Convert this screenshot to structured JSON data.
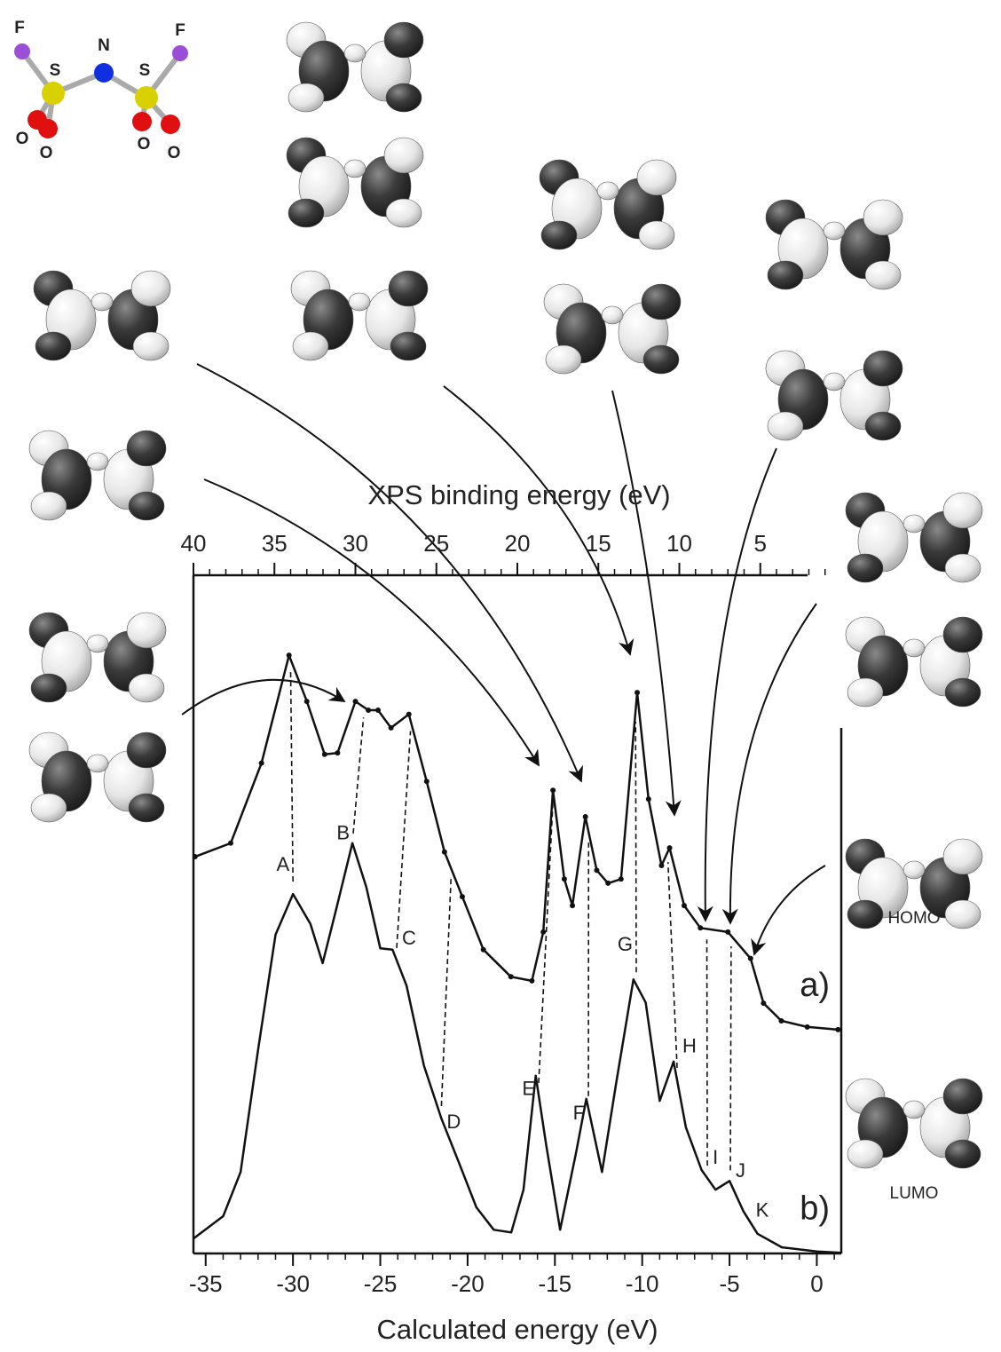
{
  "chart_data": {
    "type": "line",
    "x_title": "Calculated energy (eV)",
    "x2_title": "XPS binding energy (eV)",
    "xlim": [
      -35.7,
      1.4
    ],
    "xticks": [
      -35,
      -30,
      -25,
      -20,
      -15,
      -10,
      -5,
      0
    ],
    "xminorticks": [
      -35,
      -34,
      -33,
      -32,
      -31,
      -30,
      -29,
      -28,
      -27,
      -26,
      -25,
      -24,
      -23,
      -22,
      -21,
      -20,
      -19,
      -18,
      -17,
      -16,
      -15,
      -14,
      -13,
      -12,
      -11,
      -10,
      -9,
      -8,
      -7,
      -6,
      -5,
      -4,
      -3,
      -2,
      -1,
      0,
      1
    ],
    "x2lim": [
      40,
      0
    ],
    "x2ticks": [
      40,
      35,
      30,
      25,
      20,
      15,
      10,
      5
    ],
    "x2minorticks": [
      40,
      39,
      38,
      37,
      36,
      35,
      34,
      33,
      32,
      31,
      30,
      29,
      28,
      27,
      26,
      25,
      24,
      23,
      22,
      21,
      20,
      19,
      18,
      17,
      16,
      15,
      14,
      13,
      12,
      11,
      10,
      9,
      8,
      7,
      6,
      5,
      4,
      3,
      2,
      1
    ],
    "ylim": [
      0,
      100
    ],
    "series": [
      {
        "name": "a)",
        "color": "#111111",
        "axis": "x2",
        "markers": true,
        "x": [
          39.9,
          37.7,
          35.8,
          34.1,
          33.0,
          31.9,
          31.1,
          30.0,
          29.2,
          28.6,
          27.8,
          26.7,
          25.6,
          24.5,
          23.4,
          22.1,
          20.4,
          19.1,
          18.4,
          17.8,
          17.1,
          16.6,
          15.8,
          15.1,
          14.4,
          13.6,
          12.6,
          11.9,
          11.1,
          10.6,
          9.7,
          8.7,
          7.0,
          5.6,
          4.8,
          3.7,
          2.1,
          0.2
        ],
        "values": [
          58.5,
          60.5,
          72.3,
          88.2,
          81.4,
          73.6,
          73.8,
          81.4,
          80.1,
          80.1,
          77.5,
          79.5,
          69.6,
          59.2,
          52.6,
          44.8,
          40.8,
          40.2,
          47.4,
          68.3,
          55.2,
          51.3,
          64.4,
          56.5,
          54.6,
          55.2,
          82.7,
          67,
          57.2,
          59.8,
          51.3,
          48,
          47.4,
          43.5,
          36.9,
          34.3,
          33.4,
          33
        ]
      },
      {
        "name": "b)",
        "color": "#111111",
        "markers": false,
        "x": [
          -35.7,
          -34,
          -33,
          -32,
          -31,
          -30,
          -29,
          -28.3,
          -27.5,
          -26.6,
          -25.8,
          -25,
          -24.3,
          -23.5,
          -22.5,
          -21.5,
          -20.5,
          -19.5,
          -18.5,
          -17.5,
          -16.8,
          -16.1,
          -15.5,
          -14.7,
          -13.8,
          -13.2,
          -12.3,
          -11.5,
          -10.5,
          -9.8,
          -9,
          -8.2,
          -7.5,
          -6.6,
          -5.8,
          -5,
          -4.2,
          -3.4,
          -2,
          0,
          1.4
        ],
        "values": [
          2.2,
          5.5,
          12,
          30,
          47,
          53,
          48.6,
          42.8,
          51,
          60.5,
          54,
          45,
          44.8,
          39.5,
          27.7,
          19.9,
          13.4,
          6.8,
          3.5,
          3.1,
          9.4,
          26.2,
          16,
          3.5,
          14.7,
          22.8,
          12,
          25,
          40.4,
          37,
          22.5,
          28.3,
          18.6,
          12.3,
          9.4,
          10.7,
          6.2,
          2.9,
          0.9,
          0.3,
          0.1
        ]
      }
    ],
    "peak_labels": [
      {
        "text": "A",
        "x": -30,
        "x2": 34.0,
        "y": 57.2,
        "side": "left"
      },
      {
        "text": "B",
        "x": -26.55,
        "x2": 29.5,
        "y": 61.8,
        "side": "left"
      },
      {
        "text": "C",
        "x": -24.06,
        "x2": 26.6,
        "y": 46.3,
        "side": "right"
      },
      {
        "text": "D",
        "x": -21.5,
        "x2": 24.1,
        "y": 19.2,
        "side": "right"
      },
      {
        "text": "E",
        "x": -15.93,
        "x2": 17.8,
        "y": 24.1,
        "side": "left"
      },
      {
        "text": "F",
        "x": -13.08,
        "x2": 15.6,
        "y": 20.5,
        "side": "left"
      },
      {
        "text": "G",
        "x": -10.34,
        "x2": 12.7,
        "y": 45.4,
        "side": "left"
      },
      {
        "text": "H",
        "x": -8.0,
        "x2": 10.7,
        "y": 30.4,
        "side": "right"
      },
      {
        "text": "I",
        "x": -6.27,
        "x2": 8.3,
        "y": 14,
        "side": "right"
      },
      {
        "text": "J",
        "x": -4.95,
        "x2": 6.8,
        "y": 12,
        "side": "right"
      },
      {
        "text": "K",
        "x": -3.8,
        "y": 6.2,
        "side": "right"
      }
    ]
  },
  "molecule": {
    "atoms": [
      "F",
      "S",
      "N",
      "S",
      "F",
      "O",
      "O",
      "O",
      "O"
    ]
  },
  "orbital_labels": [
    "HOMO",
    "LUMO"
  ]
}
